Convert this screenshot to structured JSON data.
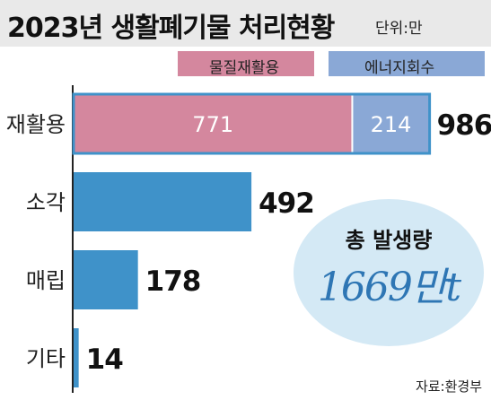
{
  "header": {
    "title": "2023년 생활폐기물 처리현황",
    "unit": "단위:만"
  },
  "legend": [
    {
      "label": "물질재활용",
      "color": "#d4879e"
    },
    {
      "label": "에너지회수",
      "color": "#8aa8d6"
    }
  ],
  "chart_data": {
    "type": "bar",
    "orientation": "horizontal",
    "categories": [
      "재활용",
      "소각",
      "매립",
      "기타"
    ],
    "stacked_series": [
      {
        "name": "물질재활용",
        "values": [
          771,
          null,
          null,
          null
        ],
        "color": "#d4879e"
      },
      {
        "name": "에너지회수",
        "values": [
          214,
          null,
          null,
          null
        ],
        "color": "#8aa8d6"
      }
    ],
    "values": [
      986,
      492,
      178,
      14
    ],
    "bar_color": "#3f92c9",
    "value_labels": [
      "986",
      "492",
      "178",
      "14"
    ],
    "segment_labels": [
      "771",
      "214"
    ],
    "xlim": [
      0,
      986
    ]
  },
  "summary": {
    "label": "총 발생량",
    "value": "1669만t"
  },
  "source": "자료:환경부"
}
